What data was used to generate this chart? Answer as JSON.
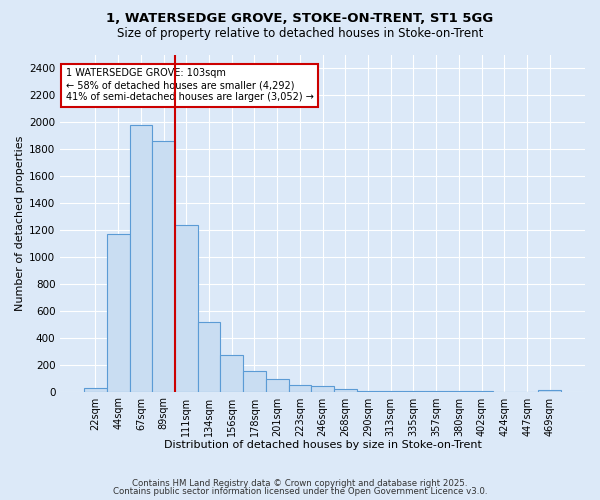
{
  "title1": "1, WATERSEDGE GROVE, STOKE-ON-TRENT, ST1 5GG",
  "title2": "Size of property relative to detached houses in Stoke-on-Trent",
  "xlabel": "Distribution of detached houses by size in Stoke-on-Trent",
  "ylabel": "Number of detached properties",
  "bar_labels": [
    "22sqm",
    "44sqm",
    "67sqm",
    "89sqm",
    "111sqm",
    "134sqm",
    "156sqm",
    "178sqm",
    "201sqm",
    "223sqm",
    "246sqm",
    "268sqm",
    "290sqm",
    "313sqm",
    "335sqm",
    "357sqm",
    "380sqm",
    "402sqm",
    "424sqm",
    "447sqm",
    "469sqm"
  ],
  "bar_values": [
    25,
    1170,
    1980,
    1860,
    1240,
    520,
    270,
    155,
    90,
    52,
    42,
    18,
    5,
    8,
    2,
    2,
    1,
    1,
    0,
    0,
    15
  ],
  "bar_color": "#c9ddf2",
  "bar_edge_color": "#5b9bd5",
  "vline_color": "#cc0000",
  "annotation_text": "1 WATERSEDGE GROVE: 103sqm\n← 58% of detached houses are smaller (4,292)\n41% of semi-detached houses are larger (3,052) →",
  "annotation_box_color": "#ffffff",
  "annotation_box_edge": "#cc0000",
  "ylim": [
    0,
    2500
  ],
  "yticks": [
    0,
    200,
    400,
    600,
    800,
    1000,
    1200,
    1400,
    1600,
    1800,
    2000,
    2200,
    2400
  ],
  "footer1": "Contains HM Land Registry data © Crown copyright and database right 2025.",
  "footer2": "Contains public sector information licensed under the Open Government Licence v3.0.",
  "bg_color": "#dce9f8",
  "plot_bg_color": "#dce9f8",
  "grid_color": "#ffffff"
}
